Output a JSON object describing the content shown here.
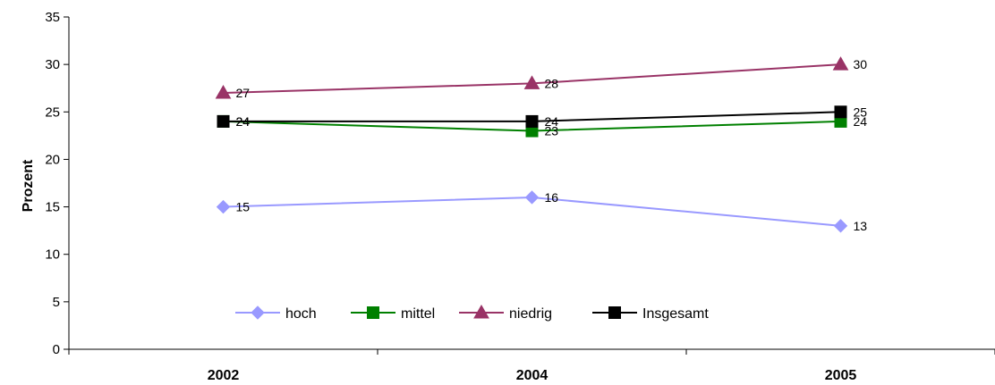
{
  "chart_data": {
    "type": "line",
    "categories": [
      "2002",
      "2004",
      "2005"
    ],
    "ylabel": "Prozent",
    "ylim": [
      0,
      35
    ],
    "yticks": [
      "0",
      "5",
      "10",
      "15",
      "20",
      "25",
      "30",
      "35"
    ],
    "grid": false,
    "legend": "bottom-center",
    "series": [
      {
        "name": "hoch",
        "values": [
          15,
          16,
          13
        ],
        "labels": [
          "15",
          "16",
          "13"
        ],
        "color": "#9999FF",
        "marker": "diamond"
      },
      {
        "name": "mittel",
        "values": [
          24,
          23,
          24
        ],
        "labels": [
          "24",
          "23",
          "24"
        ],
        "color": "#008000",
        "marker": "square"
      },
      {
        "name": "niedrig",
        "values": [
          27,
          28,
          30
        ],
        "labels": [
          "27",
          "28",
          "30"
        ],
        "color": "#993366",
        "marker": "triangle"
      },
      {
        "name": "Insgesamt",
        "values": [
          24,
          24,
          25
        ],
        "labels": [
          "24",
          "24",
          "25"
        ],
        "color": "#000000",
        "marker": "square"
      }
    ]
  }
}
